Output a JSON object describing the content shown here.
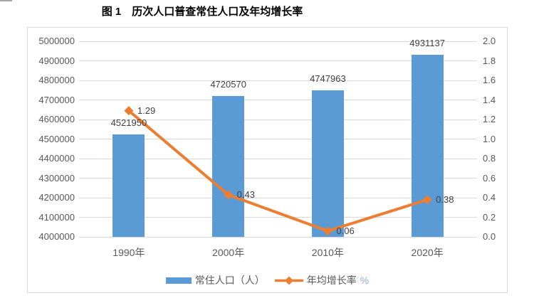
{
  "title": {
    "text": "图 1　历次人口普查常住人口及年均增长率"
  },
  "chart_data": {
    "type": "combo",
    "subtype": "bar + line, dual axis",
    "categories": [
      "1990年",
      "2000年",
      "2010年",
      "2020年"
    ],
    "series": [
      {
        "name": "常住人口（人）",
        "type": "bar",
        "axis": "left",
        "color": "#5B9BD5",
        "values": [
          4521950,
          4720570,
          4747963,
          4931137
        ],
        "data_labels": [
          "4521950",
          "4720570",
          "4747963",
          "4931137"
        ]
      },
      {
        "name": "年均增长率%",
        "type": "line",
        "axis": "right",
        "color": "#ED7D31",
        "marker": "diamond",
        "values": [
          1.29,
          0.43,
          0.06,
          0.38
        ],
        "data_labels": [
          "1.29",
          "0.43",
          "0.06",
          "0.38"
        ]
      }
    ],
    "left_axis": {
      "min": 4000000,
      "max": 5000000,
      "step": 100000,
      "tick_labels": [
        "5000000",
        "4900000",
        "4800000",
        "4700000",
        "4600000",
        "4500000",
        "4400000",
        "4300000",
        "4200000",
        "4100000",
        "4000000"
      ]
    },
    "right_axis": {
      "min": 0.0,
      "max": 2.0,
      "step": 0.2,
      "tick_labels": [
        "2.0",
        "1.8",
        "1.6",
        "1.4",
        "1.2",
        "1.0",
        "0.8",
        "0.6",
        "0.4",
        "0.2",
        "0.0"
      ]
    },
    "grid": true,
    "legend_position": "bottom"
  },
  "legend": {
    "items": [
      {
        "label": "常住人口（人）",
        "swatch": "bar"
      },
      {
        "label": "年均增长率",
        "suffix": "%",
        "swatch": "line-diamond"
      }
    ]
  },
  "colors": {
    "bar": "#5B9BD5",
    "line": "#ED7D31",
    "gridline": "#D9D9D9",
    "frame_border": "#D9D9D9",
    "axis_text": "#595959",
    "data_label_text": "#404040",
    "category_text": "#595959",
    "legend_text": "#595959",
    "legend_suffix": "#8FAADC",
    "title_text": "#000000",
    "artifact": "#A6A6A6"
  }
}
